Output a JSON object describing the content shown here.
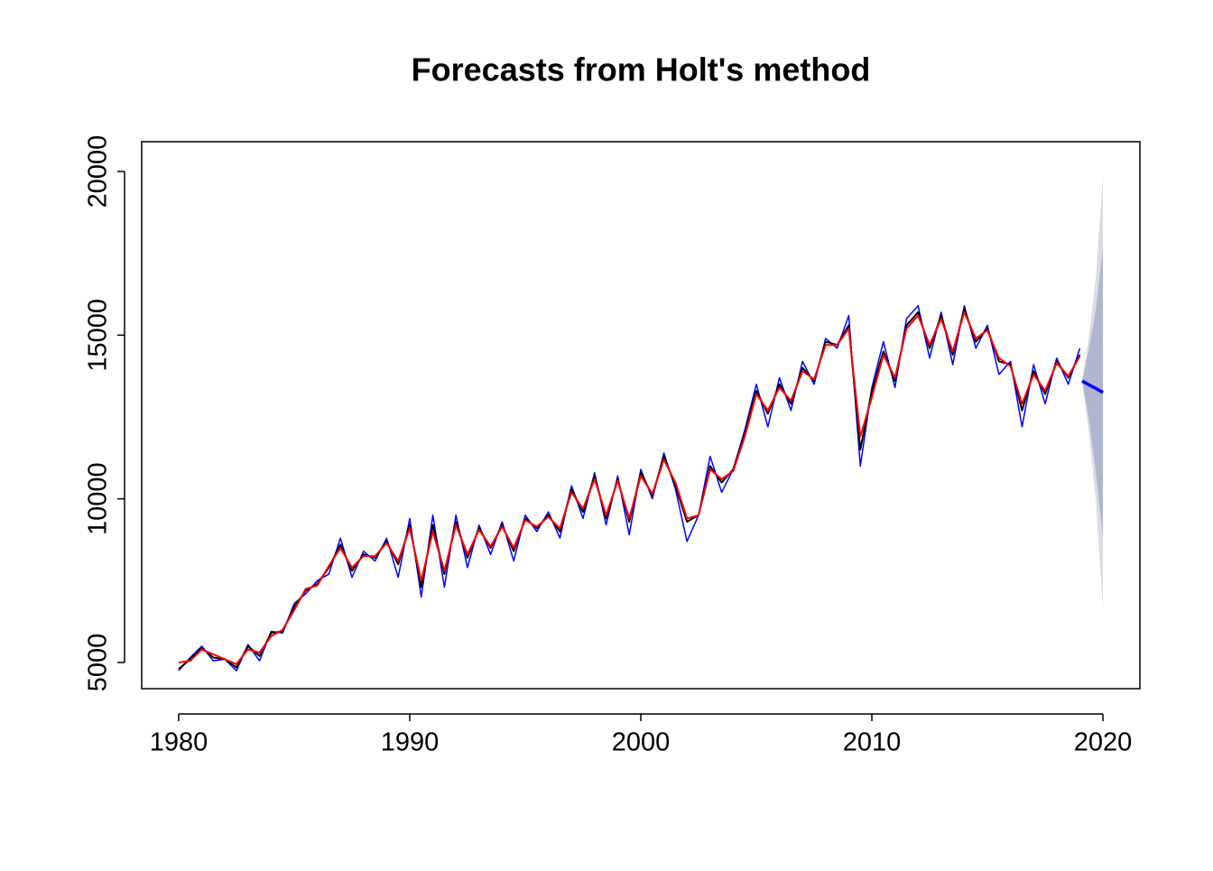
{
  "chart_data": {
    "type": "forecast",
    "title": "Forecasts from Holt's method",
    "x": [
      1980.0,
      1980.5,
      1981.0,
      1981.5,
      1982.0,
      1982.5,
      1983.0,
      1983.5,
      1984.0,
      1984.5,
      1985.0,
      1985.5,
      1986.0,
      1986.5,
      1987.0,
      1987.5,
      1988.0,
      1988.5,
      1989.0,
      1989.5,
      1990.0,
      1990.5,
      1991.0,
      1991.5,
      1992.0,
      1992.5,
      1993.0,
      1993.5,
      1994.0,
      1994.5,
      1995.0,
      1995.5,
      1996.0,
      1996.5,
      1997.0,
      1997.5,
      1998.0,
      1998.5,
      1999.0,
      1999.5,
      2000.0,
      2000.5,
      2001.0,
      2001.5,
      2002.0,
      2002.5,
      2003.0,
      2003.5,
      2004.0,
      2004.5,
      2005.0,
      2005.5,
      2006.0,
      2006.5,
      2007.0,
      2007.5,
      2008.0,
      2008.5,
      2009.0,
      2009.5,
      2010.0,
      2010.5,
      2011.0,
      2011.5,
      2012.0,
      2012.5,
      2013.0,
      2013.5,
      2014.0,
      2014.5,
      2015.0,
      2015.5,
      2016.0,
      2016.5,
      2017.0,
      2017.5,
      2018.0,
      2018.5,
      2019.0
    ],
    "series": [
      {
        "color": "#0000ff",
        "values": [
          4750,
          5150,
          5500,
          5050,
          5100,
          4750,
          5550,
          5050,
          5950,
          5900,
          6800,
          7100,
          7500,
          7700,
          8800,
          7600,
          8400,
          8100,
          8800,
          7600,
          9400,
          7000,
          9500,
          7300,
          9500,
          7900,
          9200,
          8300,
          9300,
          8100,
          9500,
          9000,
          9600,
          8800,
          10400,
          9400,
          10800,
          9200,
          10700,
          8900,
          10900,
          10000,
          11400,
          10300,
          8700,
          9500,
          11300,
          10200,
          10900,
          12100,
          13500,
          12200,
          13700,
          12700,
          14200,
          13500,
          14900,
          14600,
          15600,
          11000,
          13400,
          14800,
          13400,
          15500,
          15900,
          14300,
          15700,
          14100,
          15900,
          14600,
          15300,
          13800,
          14200,
          12200,
          14100,
          12900,
          14300,
          13500,
          14600
        ],
        "width": 1.5
      },
      {
        "color": "#000000",
        "values": [
          4800,
          5100,
          5450,
          5150,
          5100,
          4850,
          5500,
          5200,
          5900,
          5950,
          6700,
          7200,
          7400,
          7900,
          8600,
          7800,
          8300,
          8200,
          8700,
          8000,
          9200,
          7300,
          9200,
          7700,
          9300,
          8200,
          9100,
          8500,
          9200,
          8400,
          9400,
          9100,
          9500,
          9000,
          10300,
          9600,
          10700,
          9400,
          10600,
          9300,
          10800,
          10100,
          11300,
          10400,
          9300,
          9500,
          11000,
          10500,
          10900,
          12000,
          13300,
          12600,
          13500,
          12900,
          14000,
          13600,
          14800,
          14700,
          15300,
          11500,
          13300,
          14500,
          13600,
          15300,
          15700,
          14600,
          15600,
          14400,
          15800,
          14800,
          15200,
          14200,
          14100,
          12700,
          13900,
          13200,
          14200,
          13700,
          14400
        ],
        "width": 2
      },
      {
        "color": "#ff0000",
        "values": [
          5000,
          5050,
          5400,
          5250,
          5100,
          4950,
          5400,
          5300,
          5800,
          6000,
          6600,
          7250,
          7350,
          7950,
          8500,
          7900,
          8250,
          8250,
          8650,
          8100,
          9100,
          7500,
          9000,
          7800,
          9200,
          8300,
          9050,
          8550,
          9150,
          8500,
          9350,
          9150,
          9450,
          9100,
          10200,
          9700,
          10600,
          9500,
          10550,
          9400,
          10700,
          10150,
          11200,
          10500,
          9400,
          9500,
          10900,
          10600,
          10850,
          11900,
          13200,
          12700,
          13400,
          13000,
          13900,
          13650,
          14700,
          14700,
          15200,
          11900,
          13100,
          14400,
          13700,
          15200,
          15600,
          14700,
          15500,
          14500,
          15700,
          14900,
          15150,
          14300,
          14050,
          12900,
          13800,
          13300,
          14150,
          13750,
          14350
        ],
        "width": 2
      }
    ],
    "forecast": {
      "color": "#0000ff",
      "x": [
        2019.1,
        2019.4,
        2019.7,
        2020.0
      ],
      "values": [
        13600,
        13480,
        13370,
        13250
      ],
      "lo80": [
        13600,
        12400,
        10800,
        8800
      ],
      "hi80": [
        13600,
        14600,
        15800,
        17700
      ],
      "lo95": [
        13600,
        12000,
        9900,
        6600
      ],
      "hi95": [
        13600,
        15000,
        16800,
        19900
      ],
      "color80": "#b0b5d0",
      "color95": "#dbdbe3"
    },
    "xlim": [
      1978.4,
      2021.6
    ],
    "ylim": [
      4200,
      20910
    ],
    "xticks": [
      1980,
      1990,
      2000,
      2010,
      2020
    ],
    "yticks": [
      5000,
      10000,
      15000,
      20000
    ]
  }
}
